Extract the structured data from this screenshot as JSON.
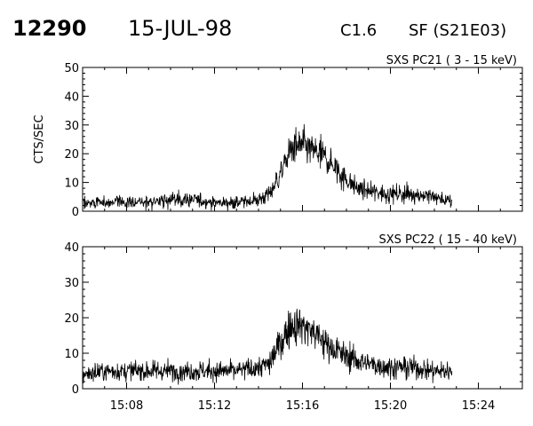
{
  "header": {
    "event_number": "12290",
    "date": "15-JUL-98",
    "goes_class": "C1.6",
    "flare_info": "SF (S21E03)"
  },
  "chart_data": [
    {
      "type": "line",
      "title": "SXS PC21  (  3 - 15 keV)",
      "ylabel": "CTS/SEC",
      "xlabel": "",
      "xlim": [
        "15:06",
        "15:26"
      ],
      "ylim": [
        0,
        50
      ],
      "y_ticks": [
        "0",
        "10",
        "20",
        "30",
        "40",
        "50"
      ],
      "x_tick_labels": [
        "15:08",
        "15:12",
        "15:16",
        "15:20",
        "15:24"
      ],
      "grid": false,
      "series": [
        {
          "x": [
            "15:06.0",
            "15:07.0",
            "15:08.0",
            "15:09.0",
            "15:10.0",
            "15:11.0",
            "15:12.0",
            "15:13.0",
            "15:14.0",
            "15:14.5",
            "15:15.0",
            "15:15.5",
            "15:16.0",
            "15:16.5",
            "15:17.0",
            "15:17.5",
            "15:18.0",
            "15:18.5",
            "15:19.0",
            "15:20.0",
            "15:21.0",
            "15:22.0",
            "15:22.8"
          ],
          "y": [
            3,
            3,
            3,
            3,
            4,
            4,
            3,
            3,
            4,
            6,
            13,
            22,
            23,
            21,
            19,
            15,
            11,
            8,
            7,
            6,
            6,
            5,
            3
          ]
        }
      ]
    },
    {
      "type": "line",
      "title": "SXS PC22  ( 15 - 40 keV)",
      "ylabel": "",
      "xlabel": "",
      "xlim": [
        "15:06",
        "15:26"
      ],
      "ylim": [
        0,
        40
      ],
      "y_ticks": [
        "0",
        "10",
        "20",
        "30",
        "40"
      ],
      "x_tick_labels": [
        "15:08",
        "15:12",
        "15:16",
        "15:20",
        "15:24"
      ],
      "grid": false,
      "series": [
        {
          "x": [
            "15:06.0",
            "15:07.0",
            "15:08.0",
            "15:09.0",
            "15:10.0",
            "15:11.0",
            "15:12.0",
            "15:13.0",
            "15:14.0",
            "15:14.5",
            "15:15.0",
            "15:15.5",
            "15:16.0",
            "15:16.5",
            "15:17.0",
            "15:17.5",
            "15:18.0",
            "15:18.5",
            "15:19.0",
            "15:20.0",
            "15:21.0",
            "15:22.0",
            "15:22.8"
          ],
          "y": [
            4,
            5,
            5,
            5,
            5,
            5,
            5,
            5,
            6,
            7,
            13,
            18,
            18,
            16,
            13,
            11,
            9,
            8,
            7,
            6,
            6,
            5,
            5
          ]
        }
      ]
    }
  ]
}
